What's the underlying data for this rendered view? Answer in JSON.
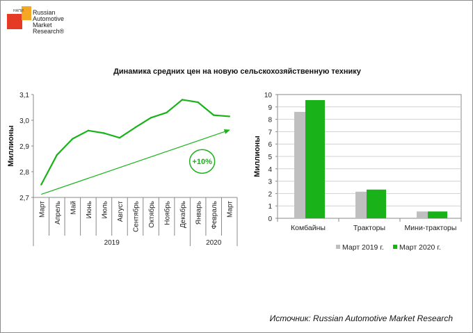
{
  "logo": {
    "tag": "НАПИ",
    "lines": [
      "Russian",
      "Automotive",
      "Market",
      "Research®"
    ]
  },
  "title": "Динамика средних цен на новую сельскохозяйственную технику",
  "source": "Источник: Russian Automotive Market Research",
  "colors": {
    "green": "#19b219",
    "gray": "#bfbfbf",
    "grid": "#d0d0d0",
    "axis": "#888888"
  },
  "chart_data": [
    {
      "type": "line",
      "ylabel": "Миллионы",
      "ylim": [
        2.7,
        3.1
      ],
      "yticks": [
        "2,7",
        "2,8",
        "2,9",
        "3,0",
        "3,1"
      ],
      "categories": [
        "Март",
        "Апрель",
        "Май",
        "Июнь",
        "Июль",
        "Август",
        "Сентябрь",
        "Октябрь",
        "Ноябрь",
        "Декабрь",
        "Январь",
        "Февраль",
        "Март"
      ],
      "values": [
        2.75,
        2.865,
        2.928,
        2.96,
        2.95,
        2.932,
        2.972,
        3.01,
        3.03,
        3.08,
        3.07,
        3.02,
        3.015
      ],
      "year_groups": [
        {
          "label": "2019",
          "from": 0,
          "to": 9
        },
        {
          "label": "2020",
          "from": 10,
          "to": 12
        }
      ],
      "trend": {
        "from": 2.712,
        "to": 2.962
      },
      "annotation": "+10%"
    },
    {
      "type": "bar",
      "ylabel": "Миллионы",
      "ylim": [
        0,
        10
      ],
      "yticks": [
        "0",
        "1",
        "2",
        "3",
        "4",
        "5",
        "6",
        "7",
        "8",
        "9",
        "10"
      ],
      "categories": [
        "Комбайны",
        "Тракторы",
        "Мини-тракторы"
      ],
      "series": [
        {
          "name": "Март 2019 г.",
          "values": [
            8.6,
            2.15,
            0.55
          ]
        },
        {
          "name": "Март 2020 г.",
          "values": [
            9.55,
            2.32,
            0.55
          ]
        }
      ]
    }
  ]
}
